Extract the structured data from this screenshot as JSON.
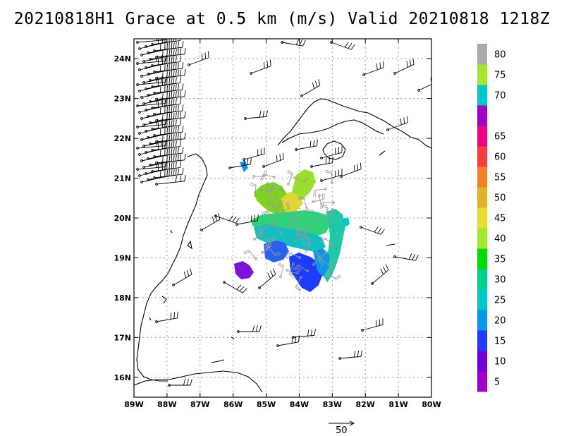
{
  "title": "20210818H1 Grace at 0.5 km (m/s) Valid 20210818 1218Z",
  "map": {
    "lon_range": [
      -89,
      -80
    ],
    "lat_range": [
      15.5,
      24.5
    ],
    "x_ticks": [
      {
        "value": -89,
        "label": "89W"
      },
      {
        "value": -88,
        "label": "88W"
      },
      {
        "value": -87,
        "label": "87W"
      },
      {
        "value": -86,
        "label": "86W"
      },
      {
        "value": -85,
        "label": "85W"
      },
      {
        "value": -84,
        "label": "84W"
      },
      {
        "value": -83,
        "label": "83W"
      },
      {
        "value": -82,
        "label": "82W"
      },
      {
        "value": -81,
        "label": "81W"
      },
      {
        "value": -80,
        "label": "80W"
      }
    ],
    "y_ticks": [
      {
        "value": 16,
        "label": "16N"
      },
      {
        "value": 17,
        "label": "17N"
      },
      {
        "value": 18,
        "label": "18N"
      },
      {
        "value": 19,
        "label": "19N"
      },
      {
        "value": 20,
        "label": "20N"
      },
      {
        "value": 21,
        "label": "21N"
      },
      {
        "value": 22,
        "label": "22N"
      },
      {
        "value": 23,
        "label": "23N"
      },
      {
        "value": 24,
        "label": "24N"
      }
    ],
    "grid": true
  },
  "colorbar": {
    "bins": [
      {
        "color": "#a000c8",
        "label": "5"
      },
      {
        "color": "#6e00dc",
        "label": "10"
      },
      {
        "color": "#1e3cff",
        "label": "15"
      },
      {
        "color": "#0a96e6",
        "label": "20"
      },
      {
        "color": "#00c8c8",
        "label": "25"
      },
      {
        "color": "#00d28c",
        "label": "30"
      },
      {
        "color": "#00dc00",
        "label": "35"
      },
      {
        "color": "#a0e632",
        "label": "40"
      },
      {
        "color": "#e6dc32",
        "label": "45"
      },
      {
        "color": "#e6af2d",
        "label": "50"
      },
      {
        "color": "#f08228",
        "label": "55"
      },
      {
        "color": "#fa3c3c",
        "label": "60"
      },
      {
        "color": "#f00082",
        "label": "65"
      },
      {
        "color": "#a000c8",
        "label": ""
      },
      {
        "color": "#00c8c8",
        "label": "70"
      },
      {
        "color": "#a0e632",
        "label": "75"
      },
      {
        "color": "#aaaaaa",
        "label": "80"
      }
    ]
  },
  "reference_vector": {
    "label": "50"
  }
}
